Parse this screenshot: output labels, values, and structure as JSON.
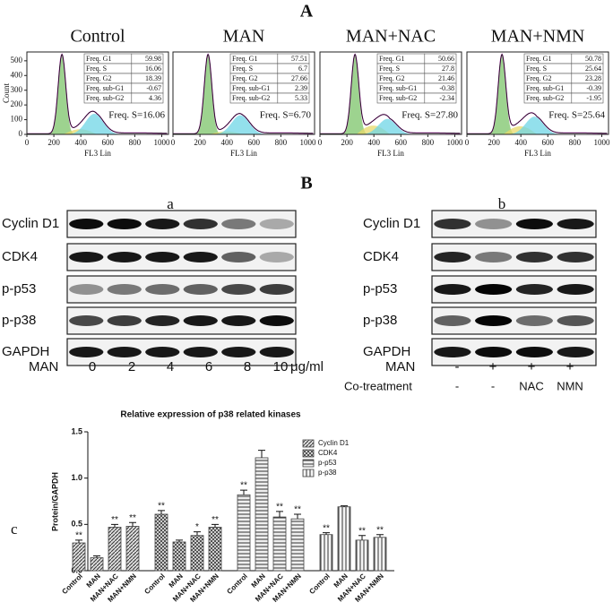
{
  "panel_a": {
    "label": "A",
    "ylabel": "Count",
    "xlabel": "FL3 Lin",
    "xlim": [
      0,
      1050
    ],
    "ylim": [
      0,
      560
    ],
    "xticks": [
      0,
      200,
      400,
      600,
      800,
      1000
    ],
    "yticks": [
      0,
      100,
      200,
      300,
      400,
      500
    ],
    "plots": [
      {
        "title": "Control",
        "rows": [
          [
            "Freq. G1",
            59.98
          ],
          [
            "Freq. S",
            16.06
          ],
          [
            "Freq. G2",
            18.39
          ],
          [
            "Freq. sub-G1",
            -0.67
          ],
          [
            "Freq. sub-G2",
            4.36
          ]
        ],
        "annotation": "Freq. S=16.06"
      },
      {
        "title": "MAN",
        "rows": [
          [
            "Freq. G1",
            57.51
          ],
          [
            "Freq. S",
            6.7
          ],
          [
            "Freq. G2",
            27.66
          ],
          [
            "Freq. sub-G1",
            2.39
          ],
          [
            "Freq. sub-G2",
            5.33
          ]
        ],
        "annotation": "Freq. S=6.70"
      },
      {
        "title": "MAN+NAC",
        "rows": [
          [
            "Freq. G1",
            50.66
          ],
          [
            "Freq. S",
            27.8
          ],
          [
            "Freq. G2",
            21.46
          ],
          [
            "Freq. sub-G1",
            -0.38
          ],
          [
            "Freq. sub-G2",
            -2.34
          ]
        ],
        "annotation": "Freq. S=27.80"
      },
      {
        "title": "MAN+NMN",
        "rows": [
          [
            "Freq. G1",
            50.78
          ],
          [
            "Freq. S",
            25.64
          ],
          [
            "Freq. G2",
            23.28
          ],
          [
            "Freq. sub-G1",
            -0.39
          ],
          [
            "Freq. sub-G2",
            -1.95
          ]
        ],
        "annotation": "Freq. S=25.64"
      }
    ]
  },
  "panel_b": {
    "label": "B",
    "a": {
      "label": "a",
      "proteins": [
        "Cyclin D1",
        "CDK4",
        "p-p53",
        "p-p38",
        "GAPDH"
      ],
      "treatment": "MAN",
      "doses": [
        "0",
        "2",
        "4",
        "6",
        "8",
        "10"
      ],
      "unit": "μg/ml"
    },
    "b": {
      "label": "b",
      "proteins": [
        "Cyclin D1",
        "CDK4",
        "p-p53",
        "p-p38",
        "GAPDH"
      ],
      "treatment": "MAN",
      "treatment_signs": [
        "-",
        "+",
        "+",
        "+"
      ],
      "cotreatment": "Co-treatment",
      "cotreatment_values": [
        "-",
        "-",
        "NAC",
        "NMN"
      ]
    }
  },
  "chart_data": {
    "type": "bar",
    "panel_label": "c",
    "title": "Relative expression of p38 related  kinases",
    "ylabel": "Protein/GAPDH",
    "categories": [
      "Control",
      "MAN",
      "MAN+NAC",
      "MAN+NMN"
    ],
    "ylim": [
      0,
      1.5
    ],
    "yticks": [
      {
        "value": 0,
        "label": "0.0"
      },
      {
        "value": 0.5,
        "label": "0.5"
      },
      {
        "value": 1,
        "label": "1.0"
      },
      {
        "value": 1.5,
        "label": "1.5"
      }
    ],
    "series": [
      {
        "name": "Cyclin D1",
        "color": "#444444",
        "values": [
          0.3,
          0.14,
          0.47,
          0.48
        ],
        "errors": [
          0.03,
          0.02,
          0.03,
          0.04
        ],
        "significance": [
          "**",
          null,
          "**",
          "**"
        ]
      },
      {
        "name": "CDK4",
        "color": "#444444",
        "values": [
          0.61,
          0.31,
          0.38,
          0.47
        ],
        "errors": [
          0.04,
          0.02,
          0.04,
          0.03
        ],
        "significance": [
          "**",
          null,
          "*",
          "**"
        ]
      },
      {
        "name": "p-p53",
        "color": "#444444",
        "values": [
          0.82,
          1.22,
          0.58,
          0.56
        ],
        "errors": [
          0.05,
          0.08,
          0.06,
          0.05
        ],
        "significance": [
          "**",
          null,
          "**",
          "**"
        ]
      },
      {
        "name": "p-p38",
        "color": "#444444",
        "values": [
          0.39,
          0.69,
          0.33,
          0.36
        ],
        "errors": [
          0.02,
          0.01,
          0.05,
          0.03
        ],
        "significance": [
          "**",
          null,
          "**",
          "**"
        ]
      }
    ]
  }
}
